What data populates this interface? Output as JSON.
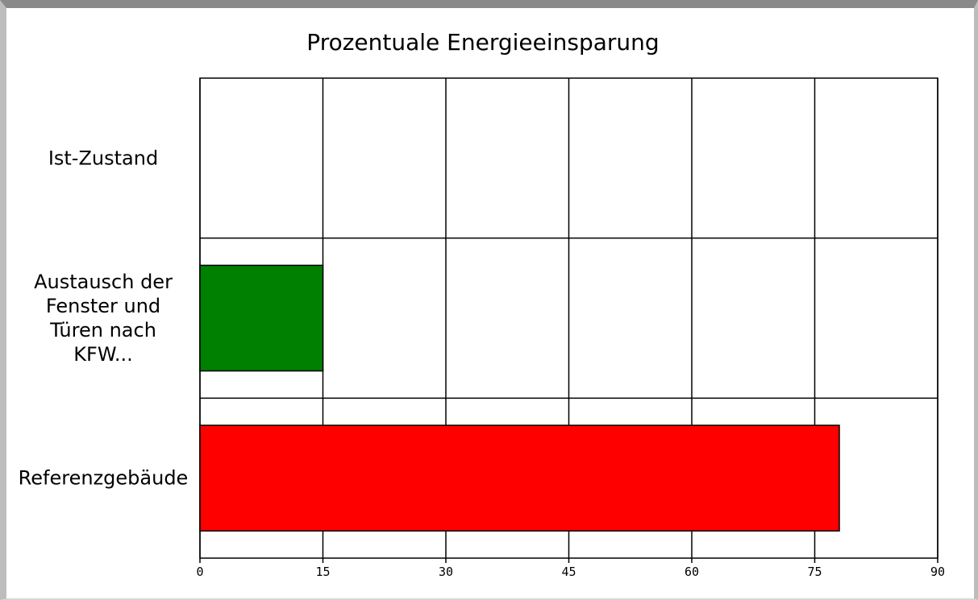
{
  "chart_data": {
    "type": "bar",
    "orientation": "horizontal",
    "title": "Prozentuale Energieeinsparung",
    "categories": [
      [
        "Ist-Zustand"
      ],
      [
        "Austausch der",
        "Fenster und",
        "Türen nach",
        "KFW..."
      ],
      [
        "Referenzgebäude"
      ]
    ],
    "values": [
      0,
      15,
      78
    ],
    "bar_colors": [
      "#008000",
      "#008000",
      "#ff0000"
    ],
    "xlim": [
      0,
      90
    ],
    "xticks": [
      "0",
      "15",
      "30",
      "45",
      "60",
      "75",
      "90"
    ],
    "grid": true
  }
}
